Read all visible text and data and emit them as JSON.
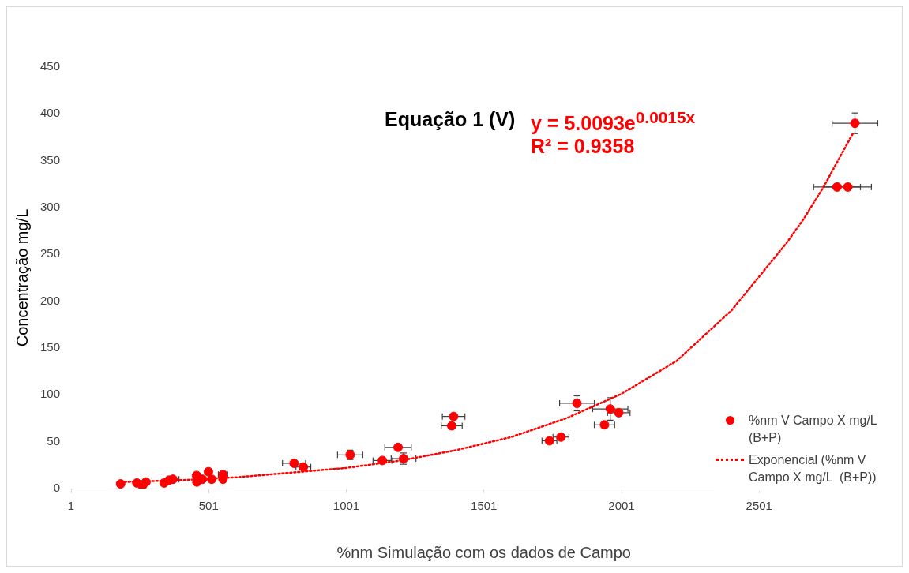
{
  "chart_data": {
    "type": "scatter",
    "xlabel": "%nm Simulação com os dados de Campo",
    "ylabel": "Concentração mg/L",
    "xlim": [
      1,
      3001
    ],
    "xticks": [
      1,
      501,
      1001,
      1501,
      2001,
      2501
    ],
    "ylim": [
      0,
      450
    ],
    "yticks": [
      0,
      50,
      100,
      150,
      200,
      250,
      300,
      350,
      400,
      450
    ],
    "grid": false,
    "legend": "bottom right",
    "annotations": [
      "Equação 1 (V)",
      "y = 5.0093e$^{0.0015x}$",
      "R² = 0.9358"
    ],
    "series": [
      {
        "name": "%nm V Campo X mg/L (B+P)",
        "type": "scatter",
        "color": "#ff0000",
        "marker": "circle",
        "x": [
          181,
          240,
          260,
          273,
          339,
          357,
          371,
          457,
          458,
          478,
          500,
          512,
          553,
          553,
          811,
          845,
          1015,
          1132,
          1189,
          1209,
          1384,
          1391,
          1739,
          1781,
          1939,
          1839,
          1960,
          1991,
          2849,
          2784,
          2823
        ],
        "values": [
          5,
          6,
          3,
          7,
          6,
          9,
          10,
          14,
          7,
          10,
          18,
          10,
          15,
          10,
          27,
          23,
          36,
          30,
          44,
          32,
          67,
          77,
          51,
          55,
          68,
          91,
          85,
          81,
          390,
          322,
          322
        ],
        "xerrors": [
          null,
          null,
          null,
          null,
          null,
          null,
          22,
          null,
          null,
          null,
          null,
          null,
          17,
          null,
          42,
          27,
          46,
          34,
          48,
          45,
          38,
          41,
          27,
          29,
          37,
          63,
          64,
          41,
          83,
          85,
          86
        ],
        "errors": [
          null,
          null,
          null,
          null,
          null,
          null,
          null,
          null,
          null,
          null,
          null,
          null,
          null,
          null,
          2,
          null,
          5,
          null,
          null,
          6,
          null,
          null,
          null,
          null,
          null,
          8,
          12,
          null,
          11,
          3,
          null
        ]
      },
      {
        "name": "Exponencial (%nm V Campo X mg/L  (B+P))",
        "type": "line",
        "color": "#ff0000",
        "marker": "none",
        "line_style": "dotted",
        "x": [
          181,
          400,
          600,
          800,
          1000,
          1200,
          1400,
          1600,
          1800,
          2000,
          2200,
          2400,
          2600,
          2663,
          2735,
          2843
        ],
        "values": [
          7,
          9,
          12,
          17,
          22,
          30,
          41,
          55,
          75,
          101,
          136,
          190,
          262,
          288,
          322,
          380
        ]
      }
    ]
  }
}
